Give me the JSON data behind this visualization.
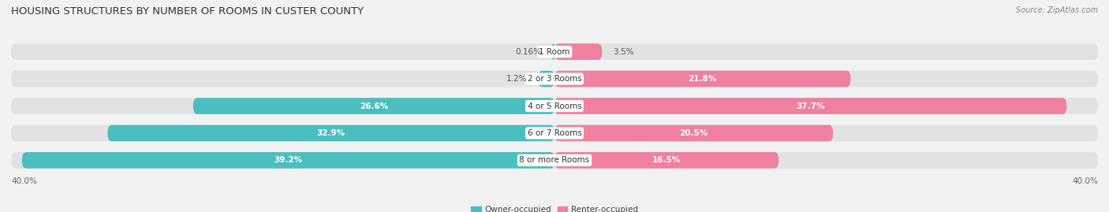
{
  "title": "HOUSING STRUCTURES BY NUMBER OF ROOMS IN CUSTER COUNTY",
  "source": "Source: ZipAtlas.com",
  "categories": [
    "1 Room",
    "2 or 3 Rooms",
    "4 or 5 Rooms",
    "6 or 7 Rooms",
    "8 or more Rooms"
  ],
  "owner_values": [
    0.16,
    1.2,
    26.6,
    32.9,
    39.2
  ],
  "renter_values": [
    3.5,
    21.8,
    37.7,
    20.5,
    16.5
  ],
  "owner_color": "#4BBFBF",
  "renter_color": "#F080A0",
  "owner_label": "Owner-occupied",
  "renter_label": "Renter-occupied",
  "x_max": 40.0,
  "background_color": "#f2f2f2",
  "bar_bg_color": "#e2e2e2",
  "bar_bg_color2": "#d8d8d8",
  "title_fontsize": 9.5,
  "source_fontsize": 7,
  "axis_label_fontsize": 7.5,
  "bar_label_fontsize": 7.5,
  "category_fontsize": 7.5,
  "bar_height": 0.6,
  "bar_gap": 1.0,
  "small_threshold": 5.0
}
